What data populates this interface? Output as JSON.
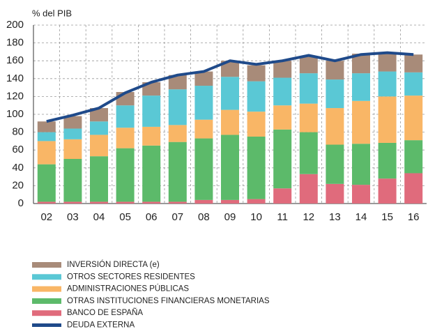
{
  "chart_data": {
    "type": "bar",
    "y_label": "% del PIB",
    "categories": [
      "02",
      "03",
      "04",
      "05",
      "06",
      "07",
      "08",
      "09",
      "10",
      "11",
      "12",
      "13",
      "14",
      "15",
      "16"
    ],
    "series": [
      {
        "name": "BANCO DE ESPAÑA",
        "color": "#e06b7c",
        "values": [
          2,
          2,
          2,
          2,
          2,
          2,
          4,
          4,
          5,
          17,
          33,
          22,
          21,
          28,
          34
        ]
      },
      {
        "name": "OTRAS INSTITUCIONES FINANCIERAS MONETARIAS",
        "color": "#5cba6a",
        "values": [
          42,
          48,
          51,
          60,
          63,
          67,
          69,
          73,
          70,
          66,
          47,
          44,
          46,
          40,
          37
        ]
      },
      {
        "name": "ADMINISTRACIONES PÚBLICAS",
        "color": "#f9b666",
        "values": [
          26,
          22,
          24,
          23,
          21,
          19,
          21,
          28,
          28,
          27,
          32,
          41,
          48,
          52,
          50
        ]
      },
      {
        "name": "OTROS SECTORES RESIDENTES",
        "color": "#5ac8d5",
        "values": [
          10,
          12,
          15,
          25,
          35,
          40,
          38,
          37,
          34,
          31,
          34,
          32,
          31,
          28,
          26
        ]
      },
      {
        "name": "INVERSIÓN DIRECTA (e)",
        "color": "#a88b79",
        "values": [
          12,
          14,
          15,
          15,
          15,
          16,
          16,
          18,
          18,
          19,
          19,
          21,
          22,
          21,
          20
        ]
      },
      {
        "name": "DEUDA EXTERNA",
        "color": "#1f4a8a",
        "type": "line",
        "values": [
          92,
          99,
          107,
          124,
          136,
          144,
          148,
          160,
          156,
          160,
          166,
          160,
          167,
          169,
          167
        ]
      }
    ],
    "ylim": [
      0,
      200
    ],
    "yticks": [
      0,
      20,
      40,
      60,
      80,
      100,
      120,
      140,
      160,
      180,
      200
    ],
    "grid": true
  }
}
